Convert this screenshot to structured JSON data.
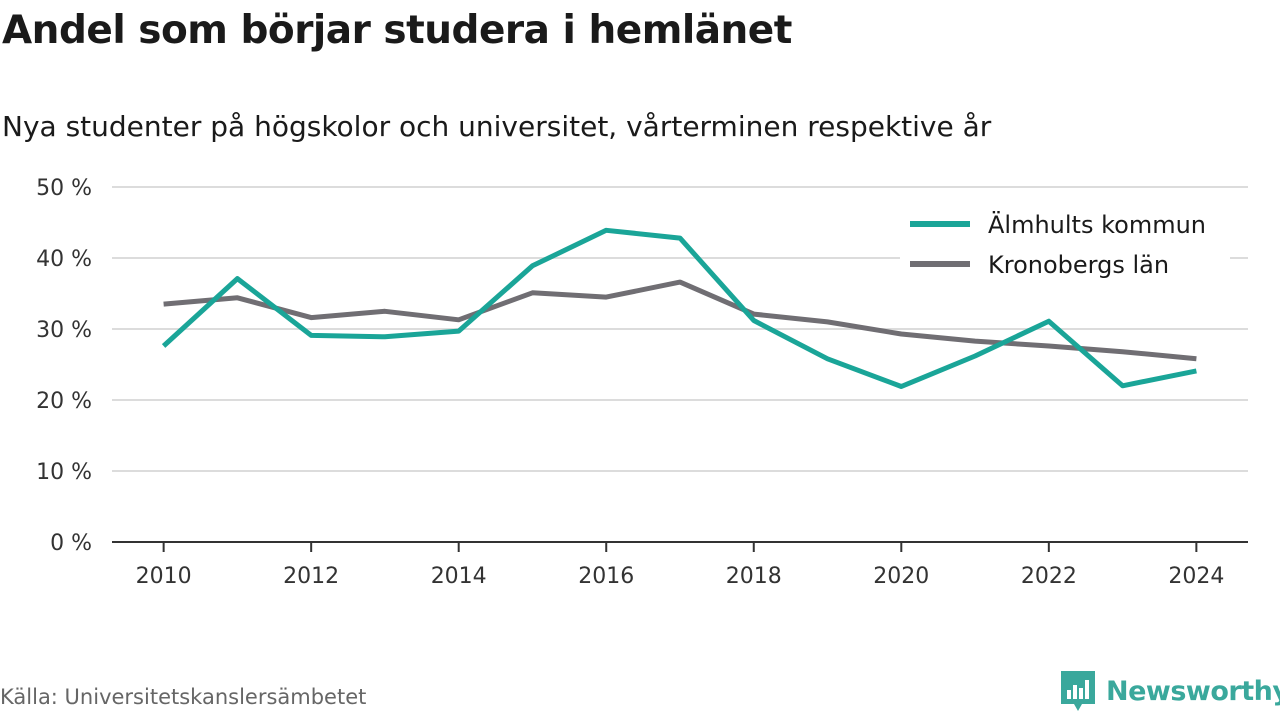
{
  "header": {
    "title": "Andel som börjar studera i hemlänet",
    "subtitle": "Nya studenter på högskolor och universitet, vårterminen respektive år"
  },
  "footer": {
    "source": "Källa: Universitetskanslersämbetet",
    "brand": "Newsworthy",
    "brand_icon": "newsworthy-bar-chart-logo-icon",
    "brand_color": "#3aa89c"
  },
  "chart_data": {
    "type": "line",
    "x": [
      2010,
      2011,
      2012,
      2013,
      2014,
      2015,
      2016,
      2017,
      2018,
      2019,
      2020,
      2021,
      2022,
      2023,
      2024
    ],
    "x_ticks": [
      2010,
      2012,
      2014,
      2016,
      2018,
      2020,
      2022,
      2024
    ],
    "x_tick_labels": [
      "2010",
      "2012",
      "2014",
      "2016",
      "2018",
      "2020",
      "2022",
      "2024"
    ],
    "y_ticks": [
      0,
      10,
      20,
      30,
      40,
      50
    ],
    "y_tick_labels": [
      "0 %",
      "10 %",
      "20 %",
      "30 %",
      "40 %",
      "50 %"
    ],
    "ylim": [
      0,
      50
    ],
    "xlim": [
      2009.3,
      2024.7
    ],
    "grid": true,
    "legend_position": "top-right",
    "series": [
      {
        "name": "Älmhults kommun",
        "color": "#1aa598",
        "values": [
          27.6,
          37.1,
          29.1,
          28.9,
          29.7,
          38.9,
          43.9,
          42.8,
          31.2,
          25.8,
          21.9,
          26.2,
          31.1,
          22.0,
          24.1
        ]
      },
      {
        "name": "Kronobergs län",
        "color": "#706e73",
        "values": [
          33.5,
          34.4,
          31.6,
          32.5,
          31.3,
          35.1,
          34.5,
          36.6,
          32.1,
          31.0,
          29.3,
          28.3,
          27.6,
          26.8,
          25.8
        ]
      }
    ]
  }
}
